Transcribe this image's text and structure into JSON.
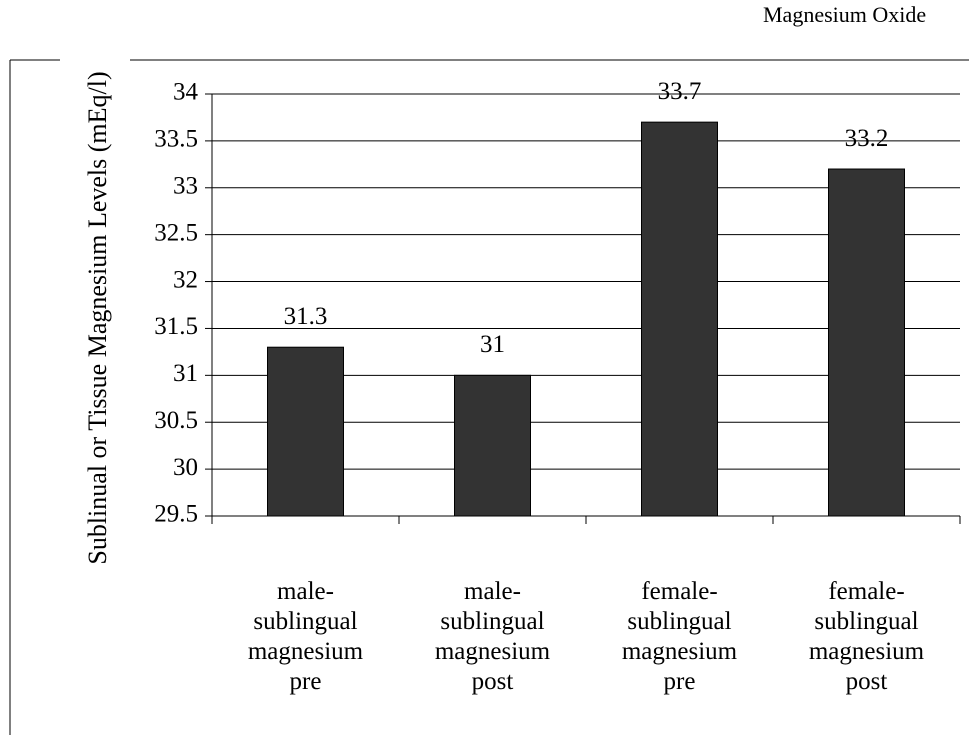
{
  "chart_data": {
    "type": "bar",
    "title": "Magnesium Oxide",
    "y_label": "Sublinual or Tissue Magnesium Levels (mEq/l)",
    "categories": [
      "male-sublingual magnesium pre",
      "male-sublingual magnesium post",
      "female-sublingual magnesium pre",
      "female-sublingual magnesium post"
    ],
    "values": [
      31.3,
      31,
      33.7,
      33.2
    ],
    "color": "#333333",
    "ylim": [
      29.5,
      34
    ],
    "yticks": [
      29.5,
      30,
      30.5,
      31,
      31.5,
      32,
      32.5,
      33,
      33.5,
      34
    ],
    "grid": true
  }
}
